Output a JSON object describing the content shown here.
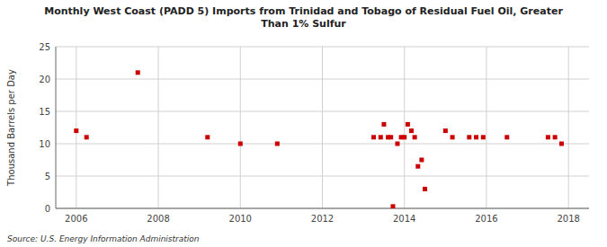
{
  "chart_data": {
    "type": "scatter",
    "title": "Monthly West Coast (PADD 5) Imports from Trinidad and Tobago of Residual Fuel Oil, Greater\nThan 1% Sulfur",
    "ylabel": "Thousand Barrels per Day",
    "source": "Source: U.S. Energy Information Administration",
    "color": "#cc0000",
    "marker": "square",
    "grid": true,
    "xlim": [
      2005.5,
      2018.5
    ],
    "ylim": [
      0,
      25
    ],
    "xticks": [
      2006,
      2008,
      2010,
      2012,
      2014,
      2016,
      2018
    ],
    "yticks": [
      0,
      5,
      10,
      15,
      20,
      25
    ],
    "x": [
      2006.0,
      2006.25,
      2007.5,
      2009.2,
      2010.0,
      2010.9,
      2013.25,
      2013.42,
      2013.5,
      2013.6,
      2013.67,
      2013.72,
      2013.83,
      2013.92,
      2014.0,
      2014.08,
      2014.17,
      2014.25,
      2014.33,
      2014.42,
      2014.5,
      2015.0,
      2015.17,
      2015.58,
      2015.75,
      2015.92,
      2016.5,
      2017.5,
      2017.67,
      2017.83
    ],
    "values": [
      12.0,
      11.0,
      21.0,
      11.0,
      10.0,
      10.0,
      11.0,
      11.0,
      13.0,
      11.0,
      11.0,
      0.3,
      10.0,
      11.0,
      11.0,
      13.0,
      12.0,
      11.0,
      6.5,
      7.5,
      3.0,
      12.0,
      11.0,
      11.0,
      11.0,
      11.0,
      11.0,
      11.0,
      11.0,
      10.0
    ]
  }
}
